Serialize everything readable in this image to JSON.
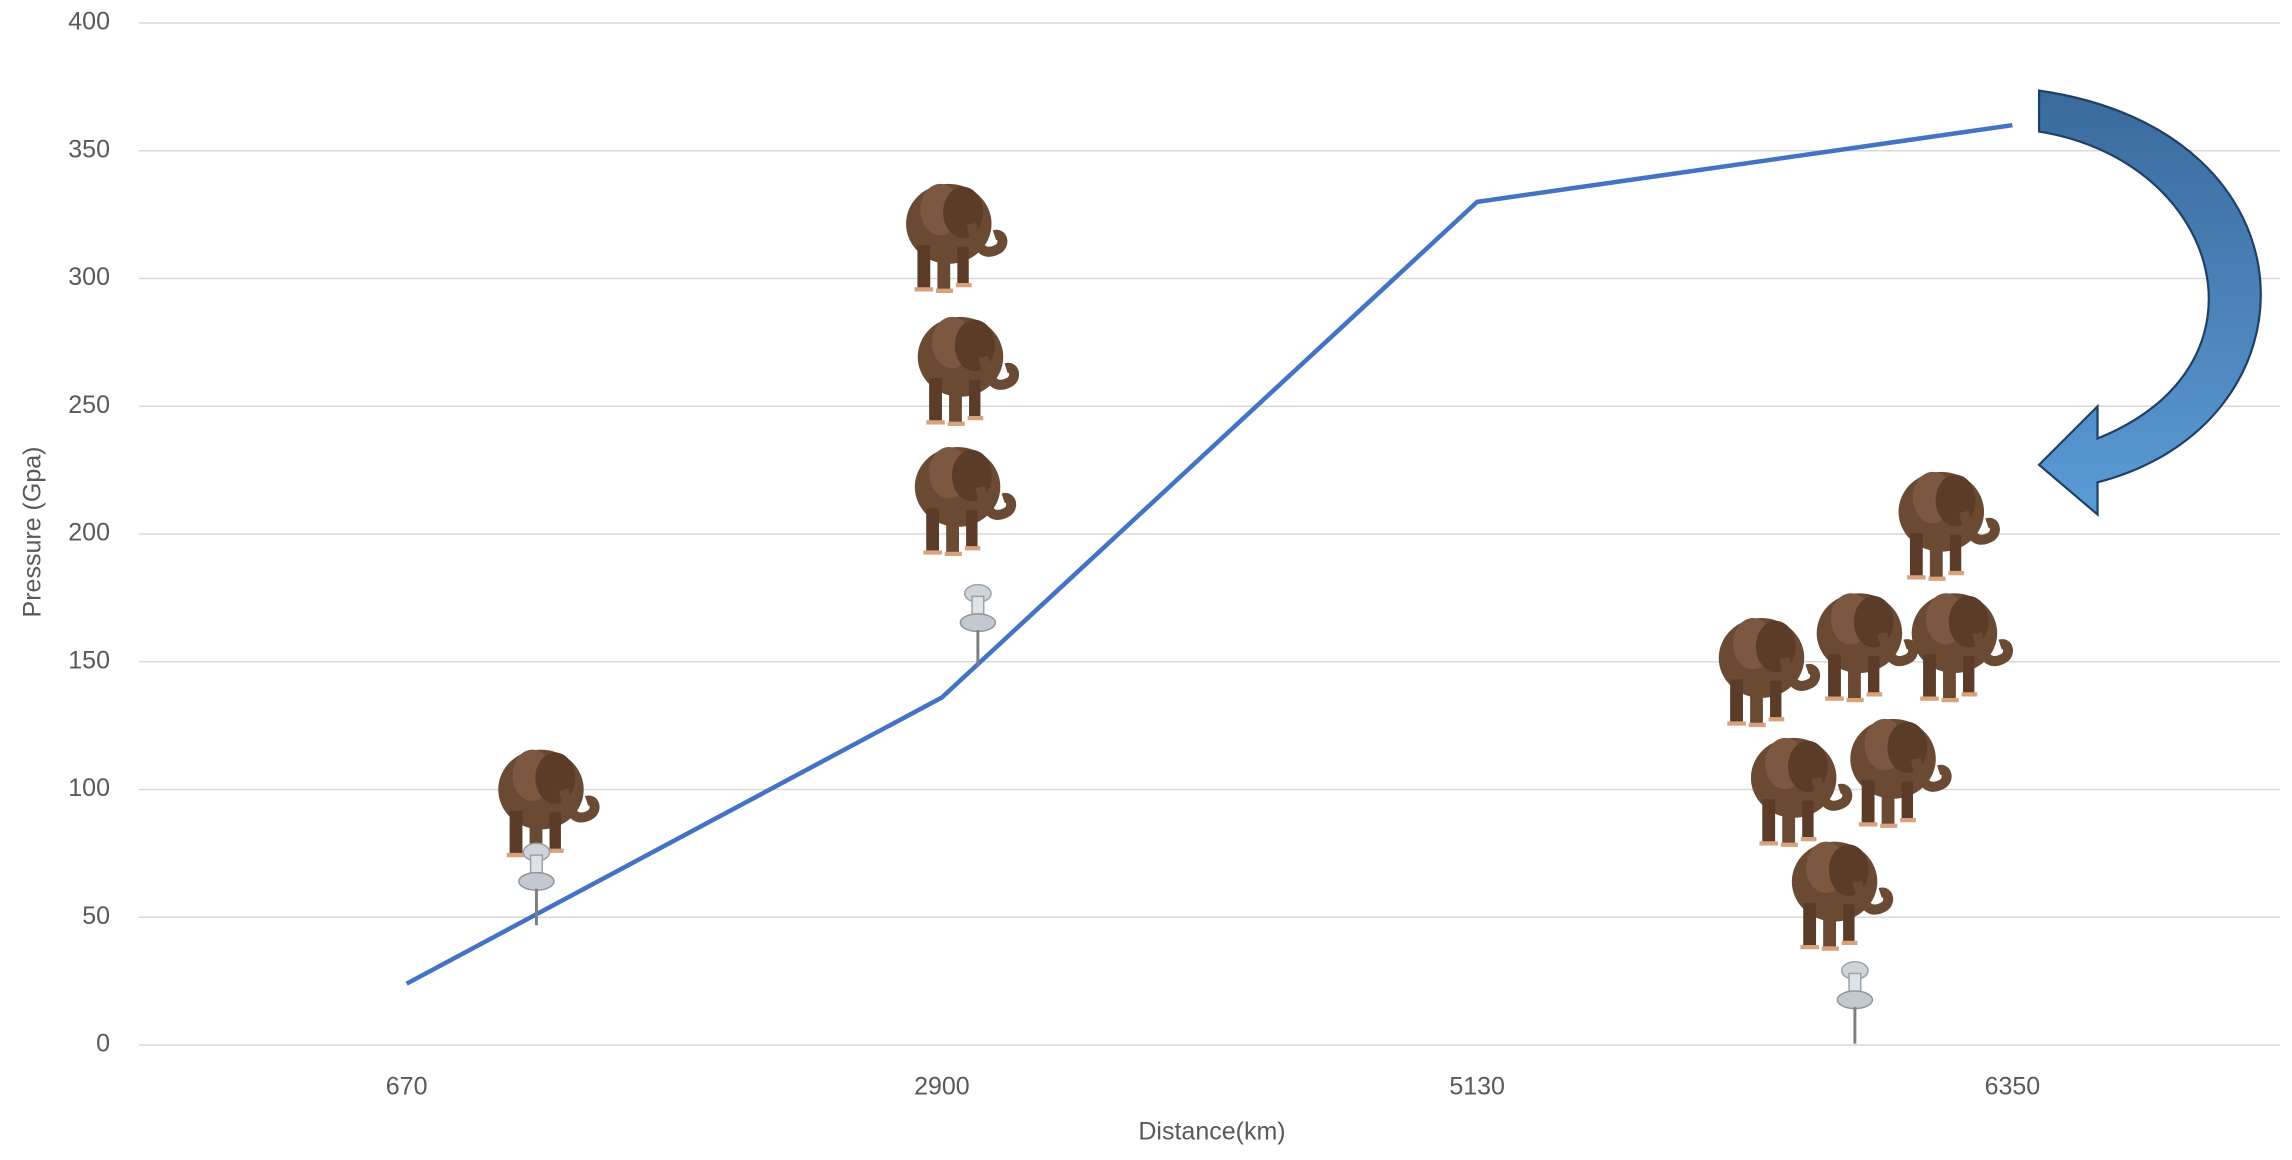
{
  "chart_data": {
    "type": "line",
    "x_label": "Distance(km)",
    "y_label": "Pressure (Gpa)",
    "categories": [
      "670",
      "2900",
      "5130",
      "6350"
    ],
    "values": [
      24,
      136,
      330,
      360
    ],
    "color": "#4472c4",
    "ylim": [
      0,
      400
    ],
    "yticks": [
      0,
      50,
      100,
      150,
      200,
      250,
      300,
      350,
      400
    ],
    "grid": true
  }
}
